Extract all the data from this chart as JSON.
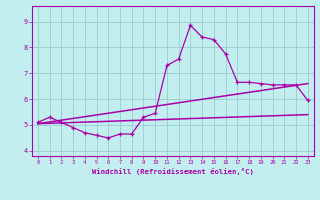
{
  "title": "",
  "xlabel": "Windchill (Refroidissement éolien,°C)",
  "ylabel": "",
  "xlim": [
    -0.5,
    23.5
  ],
  "ylim": [
    3.8,
    9.6
  ],
  "yticks": [
    4,
    5,
    6,
    7,
    8,
    9
  ],
  "xticks": [
    0,
    1,
    2,
    3,
    4,
    5,
    6,
    7,
    8,
    9,
    10,
    11,
    12,
    13,
    14,
    15,
    16,
    17,
    18,
    19,
    20,
    21,
    22,
    23
  ],
  "bg_color": "#c2eef0",
  "grid_color": "#99cccc",
  "line_color": "#aa00aa",
  "line_width": 0.9,
  "series1_x": [
    0,
    1,
    2,
    3,
    4,
    5,
    6,
    7,
    8,
    9,
    10,
    11,
    12,
    13,
    14,
    15,
    16,
    17,
    18,
    19,
    20,
    21,
    22,
    23
  ],
  "series1_y": [
    5.1,
    5.3,
    5.1,
    4.9,
    4.7,
    4.6,
    4.5,
    4.65,
    4.65,
    5.3,
    5.45,
    7.3,
    7.55,
    8.85,
    8.4,
    8.3,
    7.75,
    6.65,
    6.65,
    6.6,
    6.55,
    6.55,
    6.55,
    5.95
  ],
  "series2_x": [
    0,
    23
  ],
  "series2_y": [
    5.05,
    5.4
  ],
  "series3_x": [
    0,
    23
  ],
  "series3_y": [
    5.05,
    6.6
  ],
  "dpi": 100,
  "figsize": [
    3.2,
    2.0
  ]
}
